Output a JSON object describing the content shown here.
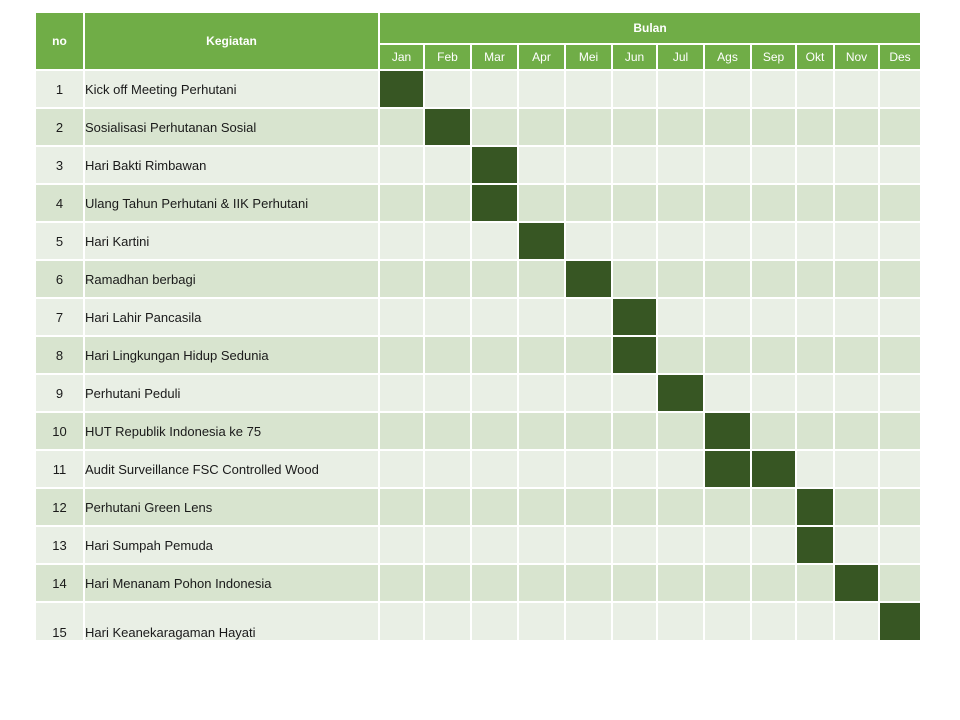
{
  "headers": {
    "no": "no",
    "kegiatan": "Kegiatan",
    "bulan": "Bulan"
  },
  "months": [
    "Jan",
    "Feb",
    "Mar",
    "Apr",
    "Mei",
    "Jun",
    "Jul",
    "Ags",
    "Sep",
    "Okt",
    "Nov",
    "Des"
  ],
  "colors": {
    "header": "#70ad47",
    "row_light": "#e9efe5",
    "row_dark": "#d8e4cf",
    "active": "#375623"
  },
  "rows": [
    {
      "no": "1",
      "kegiatan": "Kick off Meeting Perhutani",
      "months": [
        "Jan"
      ]
    },
    {
      "no": "2",
      "kegiatan": "Sosialisasi Perhutanan Sosial",
      "months": [
        "Feb"
      ]
    },
    {
      "no": "3",
      "kegiatan": "Hari Bakti Rimbawan",
      "months": [
        "Mar"
      ]
    },
    {
      "no": "4",
      "kegiatan": "Ulang Tahun Perhutani & IIK Perhutani",
      "months": [
        "Mar"
      ]
    },
    {
      "no": "5",
      "kegiatan": "Hari Kartini",
      "months": [
        "Apr"
      ]
    },
    {
      "no": "6",
      "kegiatan": "Ramadhan berbagi",
      "months": [
        "Mei"
      ]
    },
    {
      "no": "7",
      "kegiatan": "Hari Lahir Pancasila",
      "months": [
        "Jun"
      ]
    },
    {
      "no": "8",
      "kegiatan": "Hari Lingkungan Hidup Sedunia",
      "months": [
        "Jun"
      ]
    },
    {
      "no": "9",
      "kegiatan": "Perhutani Peduli",
      "months": [
        "Jul"
      ]
    },
    {
      "no": "10",
      "kegiatan": "HUT Republik Indonesia ke 75",
      "months": [
        "Ags"
      ]
    },
    {
      "no": "11",
      "kegiatan": "Audit Surveillance FSC Controlled Wood",
      "months": [
        "Ags",
        "Sep"
      ]
    },
    {
      "no": "12",
      "kegiatan": "Perhutani Green Lens",
      "months": [
        "Okt"
      ]
    },
    {
      "no": "13",
      "kegiatan": "Hari Sumpah Pemuda",
      "months": [
        "Okt"
      ]
    },
    {
      "no": "14",
      "kegiatan": "Hari Menanam Pohon Indonesia",
      "months": [
        "Nov"
      ]
    },
    {
      "no": "15",
      "kegiatan": "Hari Keanekaragaman Hayati",
      "months": [
        "Des"
      ]
    }
  ]
}
